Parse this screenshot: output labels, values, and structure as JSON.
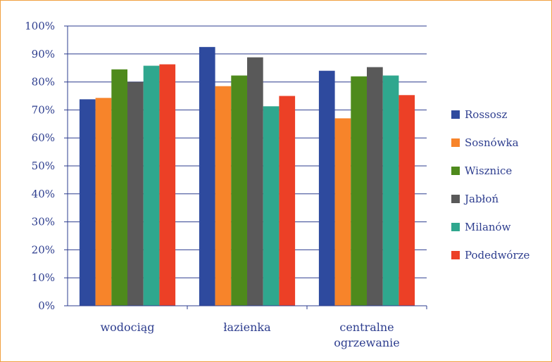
{
  "chart_data": {
    "type": "bar",
    "title": "",
    "xlabel": "",
    "ylabel": "",
    "ylim": [
      0,
      100
    ],
    "yticks": [
      "0%",
      "10%",
      "20%",
      "30%",
      "40%",
      "50%",
      "60%",
      "70%",
      "80%",
      "90%",
      "100%"
    ],
    "grid": true,
    "legend_position": "right",
    "categories": [
      [
        "wodociąg"
      ],
      [
        "łazienka"
      ],
      [
        "centralne",
        "ogrzewanie"
      ]
    ],
    "series": [
      {
        "name": "Rossosz",
        "color": "#2e4a9e",
        "values": [
          73.8,
          92.5,
          84.0
        ]
      },
      {
        "name": "Sosnówka",
        "color": "#f7842a",
        "values": [
          74.3,
          78.5,
          67.0
        ]
      },
      {
        "name": "Wisznice",
        "color": "#4e8a1c",
        "values": [
          84.5,
          82.3,
          82.0
        ]
      },
      {
        "name": "Jabłoń",
        "color": "#595959",
        "values": [
          80.0,
          88.8,
          85.3
        ]
      },
      {
        "name": "Milanów",
        "color": "#2fa78e",
        "values": [
          85.8,
          71.3,
          82.3
        ]
      },
      {
        "name": "Podedwórze",
        "color": "#ec4026",
        "values": [
          86.3,
          75.0,
          75.3
        ]
      }
    ]
  },
  "colors": {
    "frame": "#f0a040",
    "grid": "#2e3e8f",
    "text": "#2e3e8f"
  }
}
